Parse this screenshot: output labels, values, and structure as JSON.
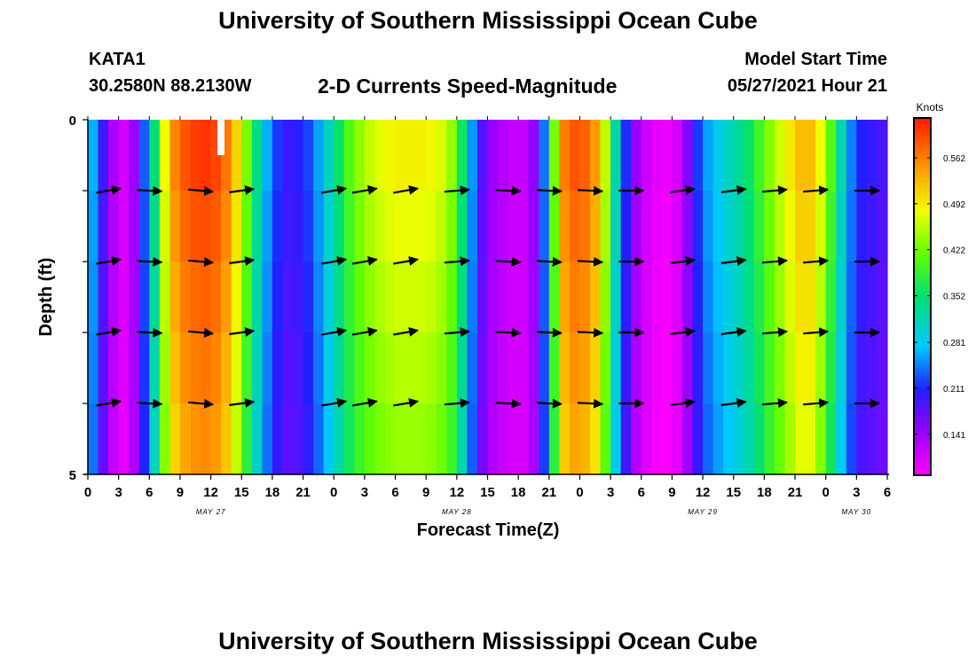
{
  "header": {
    "title": "University of Southern Mississippi Ocean Cube",
    "station_id": "KATA1",
    "station_coords": "30.2580N  88.2130W",
    "plot_title": "2-D Currents Speed-Magnitude",
    "model_start_label": "Model Start Time",
    "model_start_value": "05/27/2021 Hour 21"
  },
  "footer": {
    "title": "University of Southern Mississippi Ocean Cube"
  },
  "chart_data": {
    "type": "heatmap",
    "title": "2-D Currents Speed-Magnitude",
    "xlabel": "Forecast Time(Z)",
    "ylabel": "Depth (ft)",
    "x_tick_labels": [
      "0",
      "3",
      "6",
      "9",
      "12",
      "15",
      "18",
      "21",
      "0",
      "3",
      "6",
      "9",
      "12",
      "15",
      "18",
      "21",
      "0",
      "3",
      "6",
      "9",
      "12",
      "15",
      "18",
      "21",
      "0",
      "3",
      "6"
    ],
    "x_tick_hours": [
      0,
      3,
      6,
      9,
      12,
      15,
      18,
      21,
      24,
      27,
      30,
      33,
      36,
      39,
      42,
      45,
      48,
      51,
      54,
      57,
      60,
      63,
      66,
      69,
      72,
      75,
      78
    ],
    "date_labels": [
      {
        "label": "MAY 27",
        "hour": 12
      },
      {
        "label": "MAY 28",
        "hour": 36
      },
      {
        "label": "MAY 29",
        "hour": 60
      },
      {
        "label": "MAY 30",
        "hour": 75
      }
    ],
    "xlim": [
      0,
      78
    ],
    "y_tick_labels": [
      "0",
      "5"
    ],
    "ylim": [
      0,
      5
    ],
    "colorbar": {
      "units": "Knots",
      "ticks": [
        "0.562",
        "0.492",
        "0.422",
        "0.352",
        "0.281",
        "0.211",
        "0.141"
      ],
      "tick_values": [
        0.562,
        0.492,
        0.422,
        0.352,
        0.281,
        0.211,
        0.141
      ],
      "range": [
        0.08,
        0.62
      ]
    },
    "depth_levels": [
      0,
      1,
      2,
      3,
      4,
      5
    ],
    "speed_by_hour": [
      0.3,
      0.22,
      0.15,
      0.11,
      0.1,
      0.18,
      0.27,
      0.4,
      0.52,
      0.57,
      0.59,
      0.6,
      0.6,
      0.58,
      0.53,
      0.45,
      0.37,
      0.29,
      0.23,
      0.19,
      0.19,
      0.2,
      0.23,
      0.28,
      0.32,
      0.37,
      0.41,
      0.43,
      0.45,
      0.46,
      0.47,
      0.47,
      0.47,
      0.47,
      0.46,
      0.44,
      0.4,
      0.3,
      0.2,
      0.15,
      0.13,
      0.12,
      0.11,
      0.12,
      0.17,
      0.3,
      0.52,
      0.58,
      0.58,
      0.56,
      0.5,
      0.38,
      0.25,
      0.16,
      0.12,
      0.1,
      0.09,
      0.09,
      0.12,
      0.18,
      0.24,
      0.27,
      0.29,
      0.31,
      0.33,
      0.36,
      0.4,
      0.43,
      0.46,
      0.49,
      0.52,
      0.49,
      0.43,
      0.35,
      0.27,
      0.21,
      0.19,
      0.19,
      0.17
    ],
    "arrow_hours": [
      2,
      6,
      11,
      15,
      24,
      27,
      31,
      36,
      41,
      45,
      49,
      53,
      58,
      63,
      67,
      71,
      76
    ],
    "arrow_depths": [
      1,
      2,
      3,
      4
    ],
    "arrow_directions_deg": [
      10,
      -3,
      -5,
      8,
      10,
      10,
      10,
      5,
      -3,
      -3,
      -3,
      0,
      8,
      8,
      5,
      5,
      0
    ]
  }
}
